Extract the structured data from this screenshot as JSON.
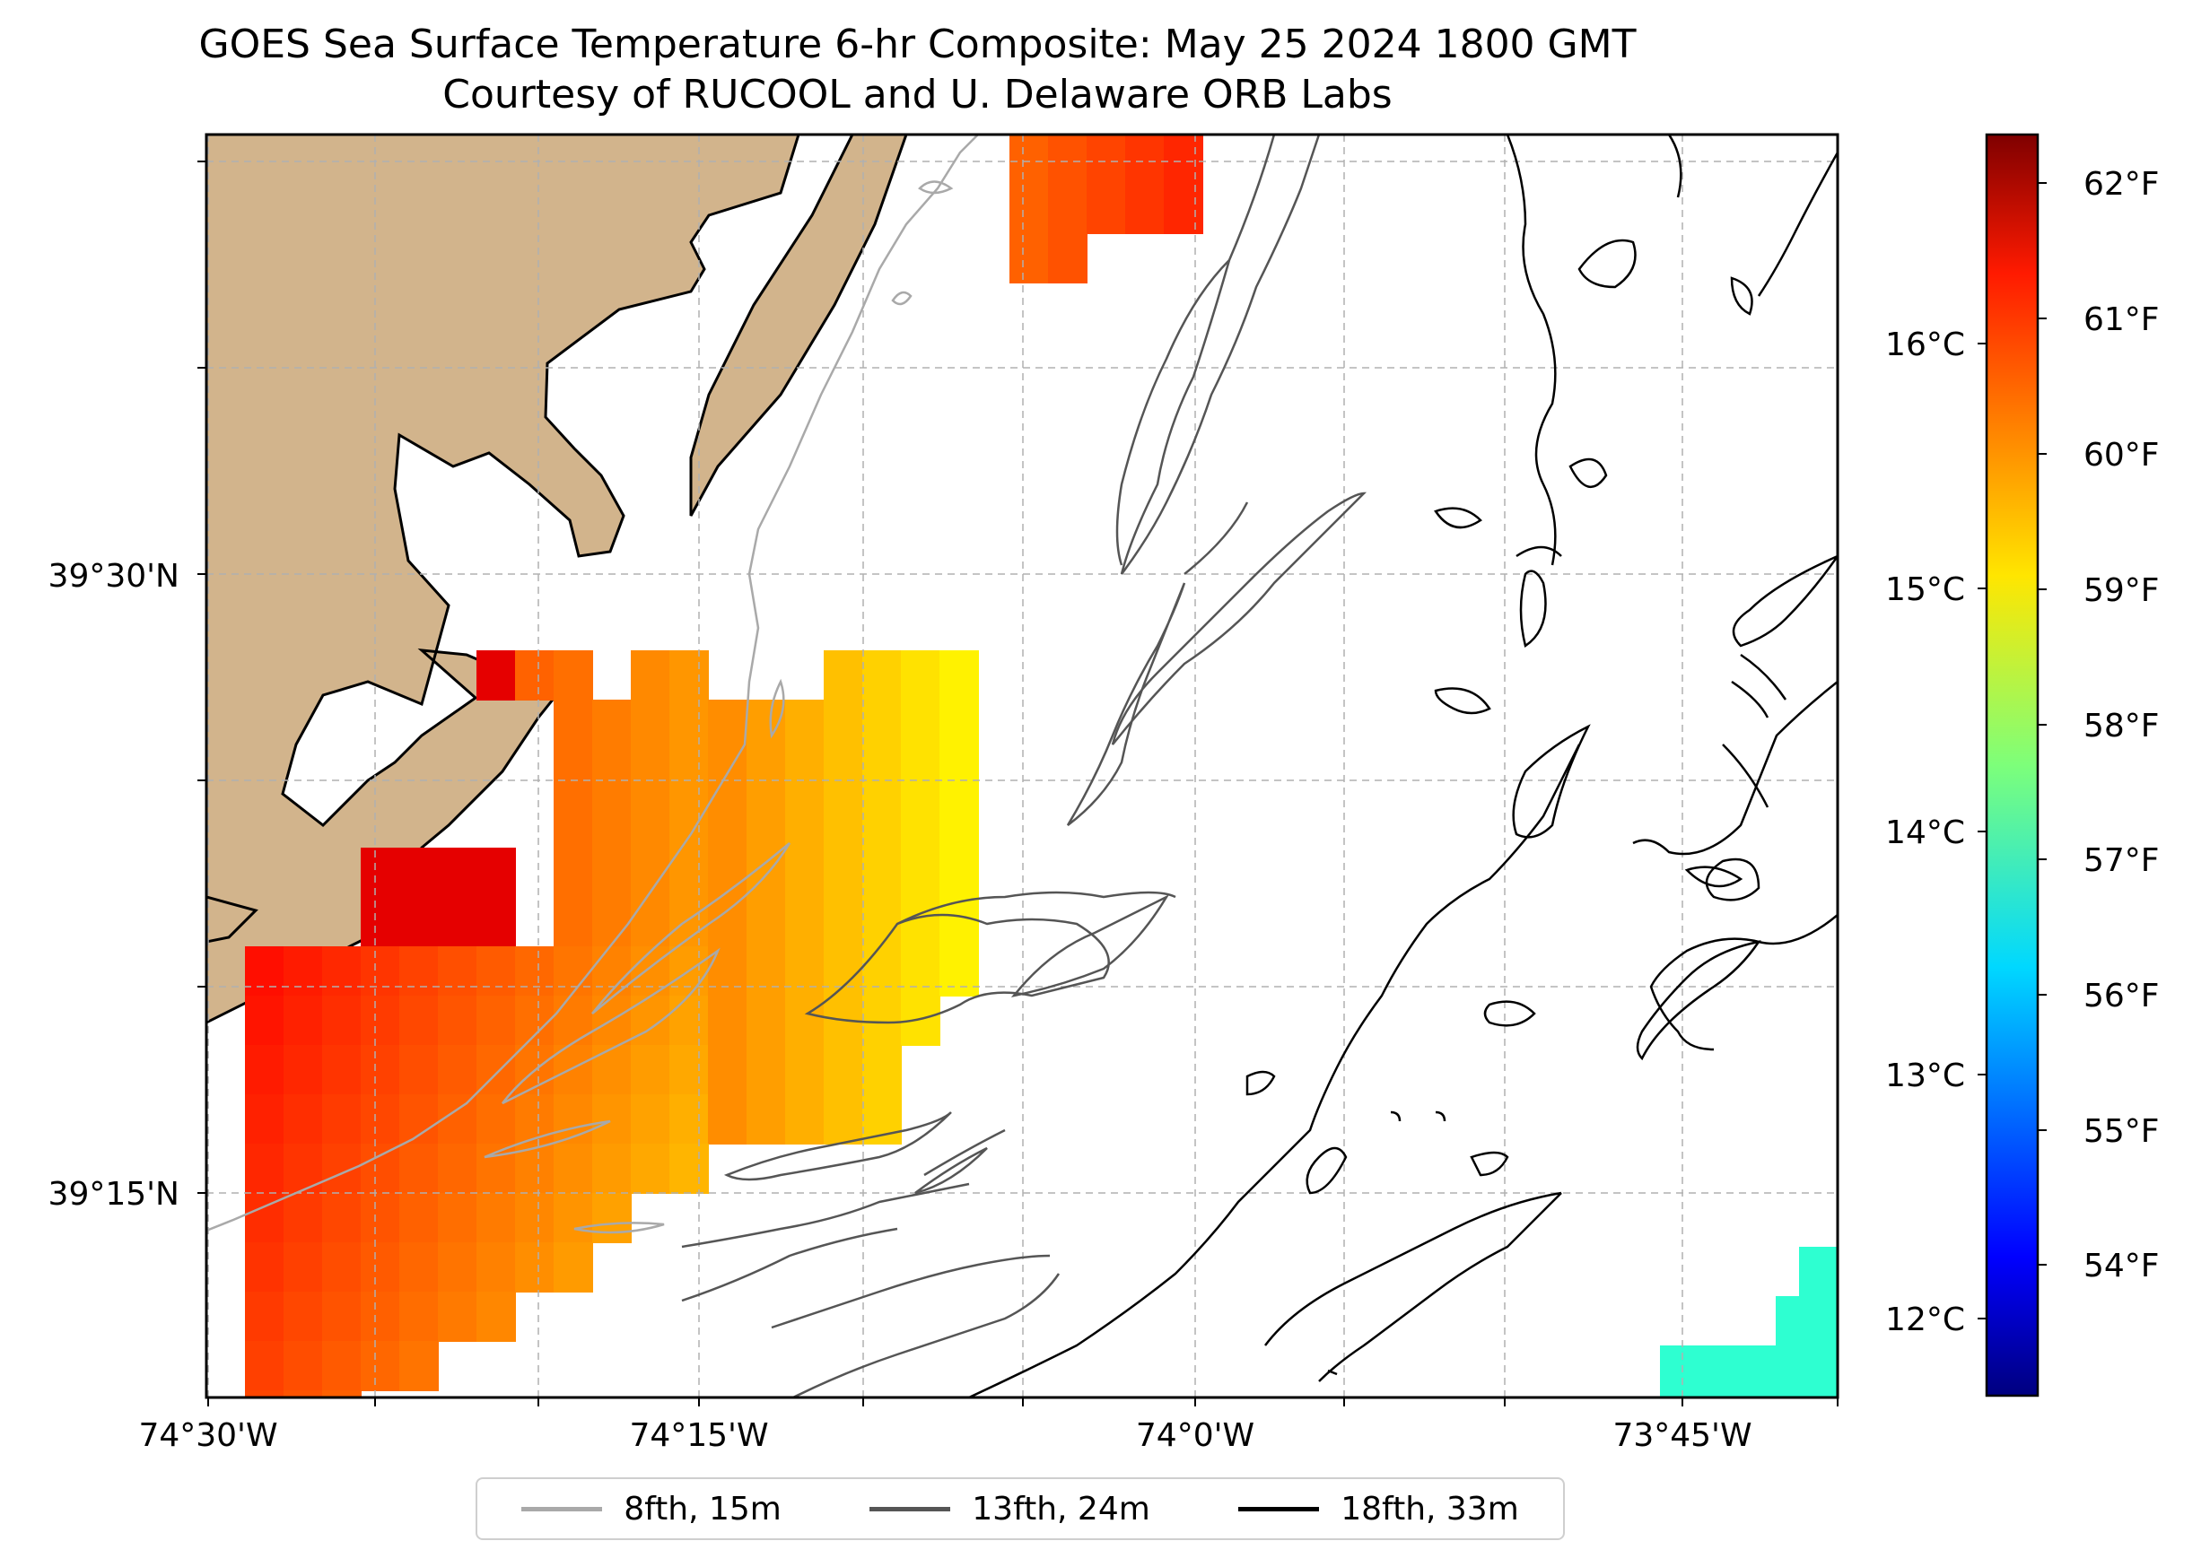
{
  "title": {
    "line1": "GOES Sea Surface Temperature 6-hr Composite: May 25 2024 1800 GMT",
    "line2": "Courtesy of RUCOOL and U. Delaware ORB Labs"
  },
  "map": {
    "land_color": "#d2b48c",
    "lon_ticks": [
      "74°30'W",
      "74°15'W",
      "74°0'W",
      "73°45'W"
    ],
    "lat_ticks": [
      "39°30'N",
      "39°15'N"
    ]
  },
  "colorbar": {
    "fahrenheit_ticks": [
      "62°F",
      "61°F",
      "60°F",
      "59°F",
      "58°F",
      "57°F",
      "56°F",
      "55°F",
      "54°F"
    ],
    "celsius_ticks": [
      "16°C",
      "15°C",
      "14°C",
      "13°C",
      "12°C"
    ],
    "colormap": "jet"
  },
  "legend": {
    "items": [
      {
        "label": "8fth, 15m",
        "color": "#a9a9a9"
      },
      {
        "label": "13fth, 24m",
        "color": "#555555"
      },
      {
        "label": "18fth, 33m",
        "color": "#000000"
      }
    ]
  }
}
